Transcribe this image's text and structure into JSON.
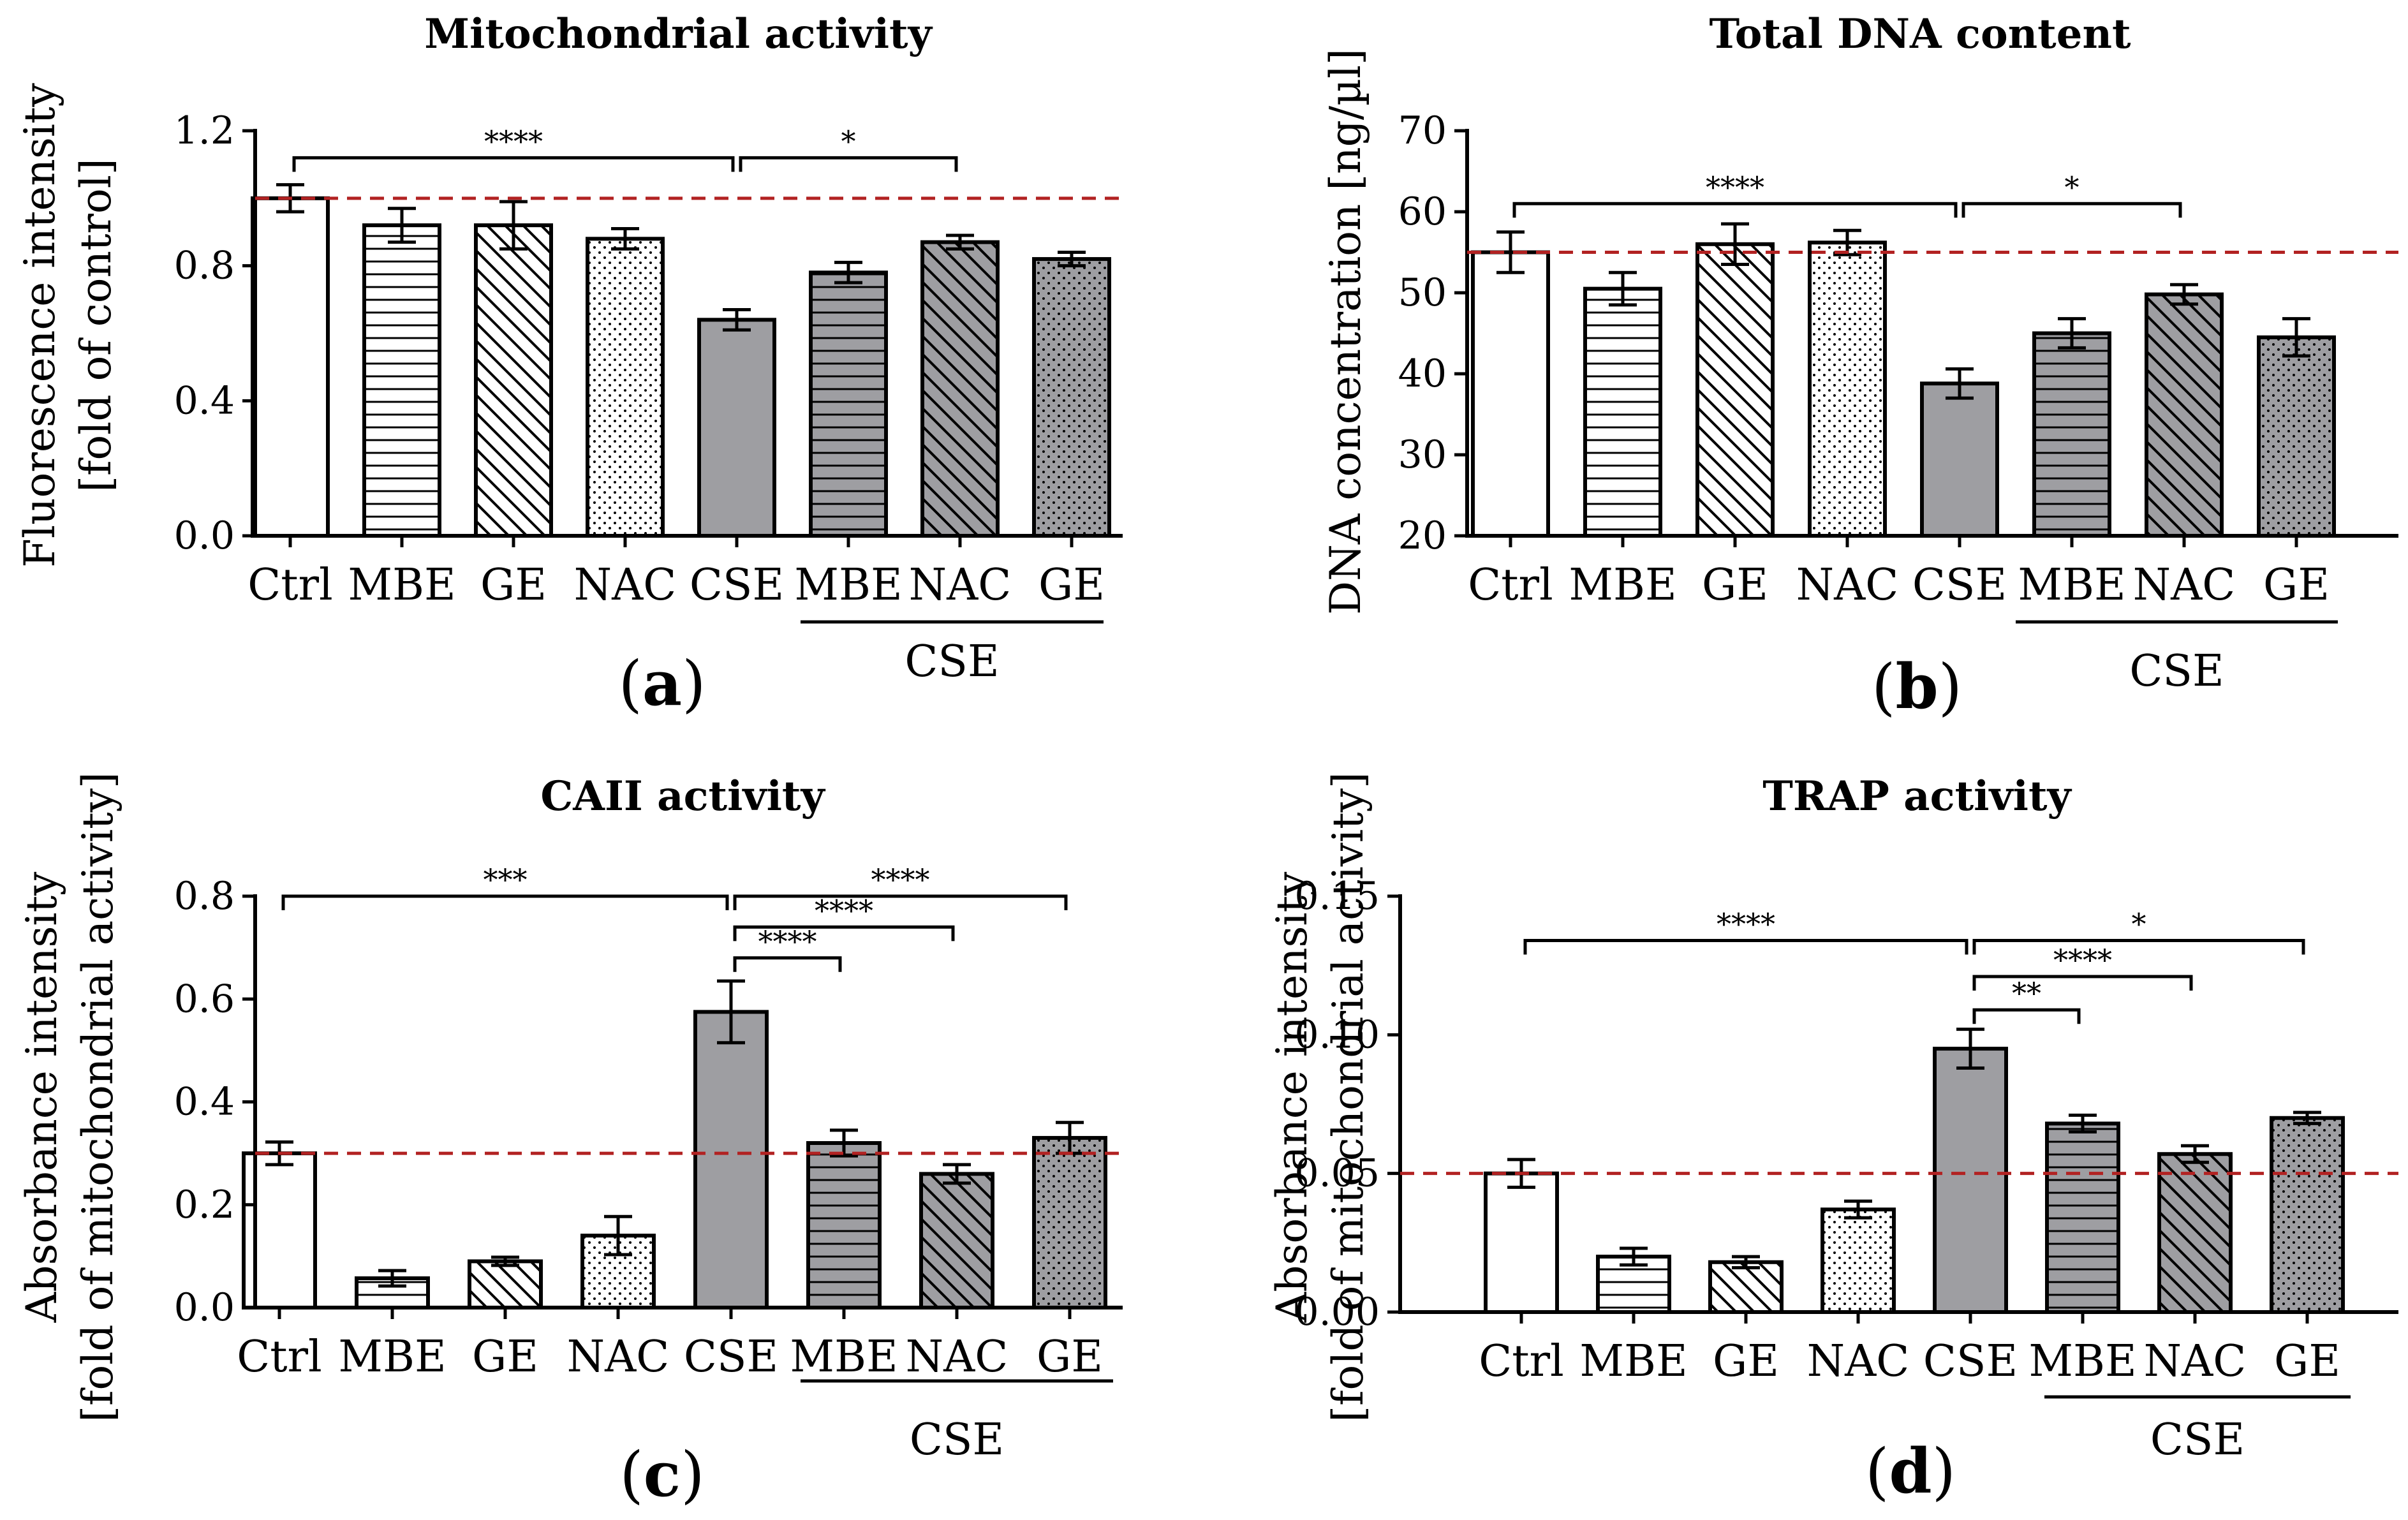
{
  "colors": {
    "control_bar": "#ffffff",
    "cse_bar": "#9e9ea2",
    "reference_line": "#b22222",
    "stroke": "#000000"
  },
  "chart_data": [
    {
      "type": "bar",
      "panel": "a",
      "title": "Mitochondrial activity",
      "ylabel_lines": [
        "Fluorescence intensity",
        "[fold of control]"
      ],
      "xlabel": "",
      "ylim": [
        0,
        1.2
      ],
      "yticks": [
        0,
        0.4,
        0.8,
        1.2
      ],
      "ytick_labels": [
        "0.0",
        "0.4",
        "0.8",
        "1.2"
      ],
      "categories": [
        "Ctrl",
        "MBE",
        "GE",
        "NAC",
        "CSE",
        "MBE",
        "NAC",
        "GE"
      ],
      "patterns": [
        "none",
        "hlines",
        "diag",
        "dots",
        "none",
        "hlines",
        "diag",
        "dots"
      ],
      "cse_group": [
        false,
        false,
        false,
        false,
        true,
        true,
        true,
        true
      ],
      "values": [
        1.0,
        0.92,
        0.92,
        0.88,
        0.64,
        0.78,
        0.87,
        0.82
      ],
      "errors": [
        0.04,
        0.05,
        0.07,
        0.03,
        0.03,
        0.03,
        0.02,
        0.02
      ],
      "reference_line": 1.0,
      "group_label": "CSE",
      "significance": [
        {
          "from": 0,
          "to": 4,
          "label": "****",
          "y": 1.12
        },
        {
          "from": 4,
          "to": 6,
          "label": "*",
          "y": 1.12
        }
      ]
    },
    {
      "type": "bar",
      "panel": "b",
      "title": "Total DNA content",
      "ylabel_lines": [
        "DNA concentration [ng/µl]"
      ],
      "xlabel": "",
      "ylim": [
        20,
        70
      ],
      "yticks": [
        20,
        30,
        40,
        50,
        60,
        70
      ],
      "ytick_labels": [
        "20",
        "30",
        "40",
        "50",
        "60",
        "70"
      ],
      "categories": [
        "Ctrl",
        "MBE",
        "GE",
        "NAC",
        "CSE",
        "MBE",
        "NAC",
        "GE"
      ],
      "patterns": [
        "none",
        "hlines",
        "diag",
        "dots",
        "none",
        "hlines",
        "diag",
        "dots"
      ],
      "cse_group": [
        false,
        false,
        false,
        false,
        true,
        true,
        true,
        true
      ],
      "values": [
        55.0,
        50.5,
        56.0,
        56.2,
        38.8,
        45.0,
        49.8,
        44.5
      ],
      "errors": [
        2.5,
        2.0,
        2.5,
        1.5,
        1.8,
        1.8,
        1.2,
        2.3
      ],
      "reference_line": 55.0,
      "group_label": "CSE",
      "significance": [
        {
          "from": 0,
          "to": 4,
          "label": "****",
          "y": 61.0
        },
        {
          "from": 4,
          "to": 6,
          "label": "*",
          "y": 61.0
        }
      ]
    },
    {
      "type": "bar",
      "panel": "c",
      "title": "CAII activity",
      "ylabel_lines": [
        "Absorbance intensity",
        "[fold of mitochondrial activity]"
      ],
      "xlabel": "",
      "ylim": [
        0,
        0.8
      ],
      "yticks": [
        0,
        0.2,
        0.4,
        0.6,
        0.8
      ],
      "ytick_labels": [
        "0.0",
        "0.2",
        "0.4",
        "0.6",
        "0.8"
      ],
      "categories": [
        "Ctrl",
        "MBE",
        "GE",
        "NAC",
        "CSE",
        "MBE",
        "NAC",
        "GE"
      ],
      "patterns": [
        "none",
        "hlines",
        "diag",
        "dots",
        "none",
        "hlines",
        "diag",
        "dots"
      ],
      "cse_group": [
        false,
        false,
        false,
        false,
        true,
        true,
        true,
        true
      ],
      "values": [
        0.3,
        0.057,
        0.09,
        0.14,
        0.575,
        0.32,
        0.26,
        0.33
      ],
      "errors": [
        0.022,
        0.015,
        0.008,
        0.037,
        0.06,
        0.025,
        0.018,
        0.03
      ],
      "reference_line": 0.3,
      "group_label": "CSE",
      "significance": [
        {
          "from": 0,
          "to": 4,
          "label": "***",
          "y": 0.8
        },
        {
          "from": 4,
          "to": 7,
          "label": "****",
          "y": 0.8
        },
        {
          "from": 4,
          "to": 6,
          "label": "****",
          "y": 0.74
        },
        {
          "from": 4,
          "to": 5,
          "label": "****",
          "y": 0.68
        }
      ]
    },
    {
      "type": "bar",
      "panel": "d",
      "title": "TRAP activity",
      "ylabel_lines": [
        "Absorbance intensity",
        "[fold of mitochondrial activity]"
      ],
      "xlabel": "",
      "ylim": [
        0,
        0.15
      ],
      "yticks": [
        0,
        0.05,
        0.1,
        0.15
      ],
      "ytick_labels": [
        "0.00",
        "0.05",
        "0.10",
        "0.15"
      ],
      "categories": [
        "Ctrl",
        "MBE",
        "GE",
        "NAC",
        "CSE",
        "MBE",
        "NAC",
        "GE"
      ],
      "patterns": [
        "none",
        "hlines",
        "diag",
        "dots",
        "none",
        "hlines",
        "diag",
        "dots"
      ],
      "cse_group": [
        false,
        false,
        false,
        false,
        true,
        true,
        true,
        true
      ],
      "values": [
        0.05,
        0.02,
        0.018,
        0.037,
        0.095,
        0.068,
        0.057,
        0.07
      ],
      "errors": [
        0.005,
        0.003,
        0.002,
        0.003,
        0.007,
        0.003,
        0.003,
        0.002
      ],
      "reference_line": 0.05,
      "group_label": "CSE",
      "significance": [
        {
          "from": 0,
          "to": 4,
          "label": "****",
          "y": 0.134
        },
        {
          "from": 4,
          "to": 7,
          "label": "*",
          "y": 0.134
        },
        {
          "from": 4,
          "to": 6,
          "label": "****",
          "y": 0.121
        },
        {
          "from": 4,
          "to": 5,
          "label": "**",
          "y": 0.109
        }
      ]
    }
  ]
}
